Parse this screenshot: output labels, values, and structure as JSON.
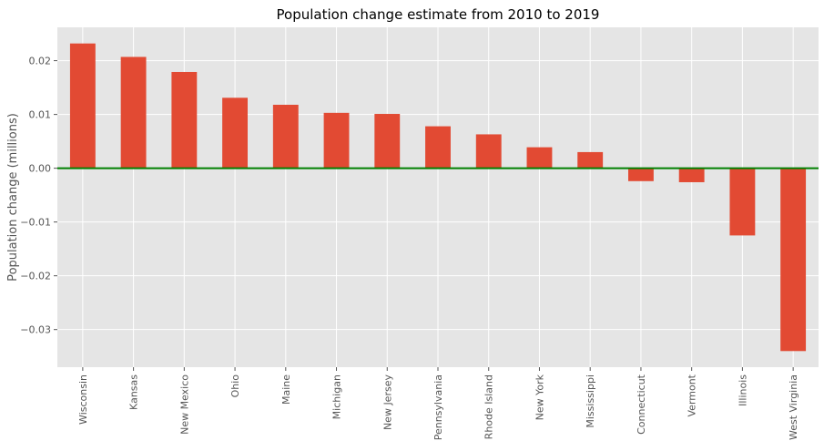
{
  "chart_data": {
    "type": "bar",
    "title": "Population change estimate from 2010 to 2019",
    "xlabel": "",
    "ylabel": "Population change (millions)",
    "categories": [
      "Wisconsin",
      "Kansas",
      "New Mexico",
      "Ohio",
      "Maine",
      "Michigan",
      "New Jersey",
      "Pennsylvania",
      "Rhode Island",
      "New York",
      "Mississippi",
      "Connecticut",
      "Vermont",
      "Illinois",
      "West Virginia"
    ],
    "values": [
      0.0232,
      0.0207,
      0.0179,
      0.0131,
      0.0118,
      0.0103,
      0.0101,
      0.0078,
      0.0063,
      0.0039,
      0.003,
      -0.0024,
      -0.0026,
      -0.0125,
      -0.034
    ],
    "ylim": [
      -0.037,
      0.0262
    ],
    "yticks": [
      -0.03,
      -0.02,
      -0.01,
      0.0,
      0.01,
      0.02
    ],
    "ytick_labels": [
      "−0.03",
      "−0.02",
      "−0.01",
      "0.00",
      "0.01",
      "0.02"
    ],
    "grid": true,
    "legend": "none",
    "colors": {
      "bar": "#E24A33",
      "zero_line": "#008000",
      "plot_background": "#E5E5E5",
      "grid": "#FFFFFF"
    }
  }
}
